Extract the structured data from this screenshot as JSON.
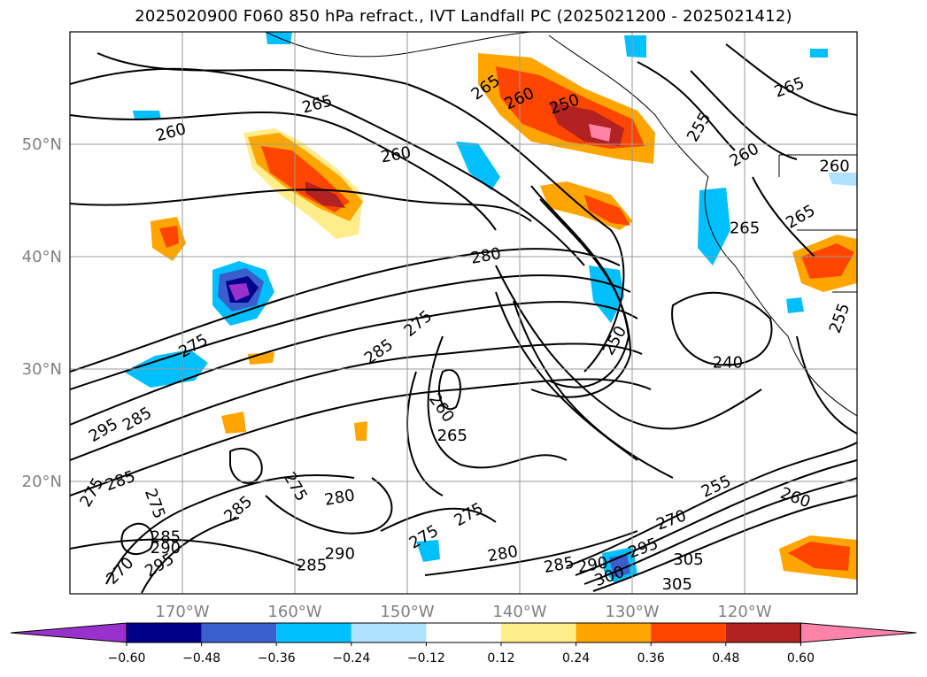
{
  "title": "2025020900 F060 850 hPa refract., IVT Landfall PC (2025021200 - 2025021412)",
  "map": {
    "lat_labels": [
      "50°N",
      "40°N",
      "30°N",
      "20°N"
    ],
    "lon_labels": [
      "170°W",
      "160°W",
      "150°W",
      "140°W",
      "130°W",
      "120°W"
    ],
    "tick_label_color": "#808080",
    "grid": true,
    "extent": {
      "lon_min": -180,
      "lon_max": -110,
      "lat_min": 10,
      "lat_max": 60
    }
  },
  "contour_labels": [
    {
      "text": "265",
      "lon": -158,
      "lat": 53.5,
      "rot": 15
    },
    {
      "text": "260",
      "lon": -171,
      "lat": 51,
      "rot": 15
    },
    {
      "text": "260",
      "lon": -151,
      "lat": 49,
      "rot": 10
    },
    {
      "text": "265",
      "lon": -143,
      "lat": 55,
      "rot": 35
    },
    {
      "text": "260",
      "lon": -140,
      "lat": 54,
      "rot": 25
    },
    {
      "text": "250",
      "lon": -136,
      "lat": 53.5,
      "rot": 20
    },
    {
      "text": "255",
      "lon": -124,
      "lat": 51.5,
      "rot": 60
    },
    {
      "text": "260",
      "lon": -120,
      "lat": 49,
      "rot": 30
    },
    {
      "text": "265",
      "lon": -116,
      "lat": 55,
      "rot": 20
    },
    {
      "text": "260",
      "lon": -112,
      "lat": 48,
      "rot": 0
    },
    {
      "text": "265",
      "lon": -115,
      "lat": 43.5,
      "rot": 30
    },
    {
      "text": "265",
      "lon": -120,
      "lat": 42.5,
      "rot": 0
    },
    {
      "text": "280",
      "lon": -143,
      "lat": 40,
      "rot": 10
    },
    {
      "text": "275",
      "lon": -149,
      "lat": 34,
      "rot": 40
    },
    {
      "text": "285",
      "lon": -152.5,
      "lat": 31.5,
      "rot": 35
    },
    {
      "text": "275",
      "lon": -169,
      "lat": 32,
      "rot": 30
    },
    {
      "text": "250",
      "lon": -131.5,
      "lat": 32.5,
      "rot": 60
    },
    {
      "text": "240",
      "lon": -121.5,
      "lat": 30.5,
      "rot": 0
    },
    {
      "text": "255",
      "lon": -111.5,
      "lat": 34.5,
      "rot": 70
    },
    {
      "text": "260",
      "lon": -147,
      "lat": 26.5,
      "rot": -55
    },
    {
      "text": "265",
      "lon": -146,
      "lat": 24,
      "rot": 0
    },
    {
      "text": "285",
      "lon": -174,
      "lat": 25.5,
      "rot": 30
    },
    {
      "text": "295",
      "lon": -177,
      "lat": 24.5,
      "rot": 30
    },
    {
      "text": "285",
      "lon": -175.5,
      "lat": 20,
      "rot": 20
    },
    {
      "text": "275",
      "lon": -178,
      "lat": 19,
      "rot": 60
    },
    {
      "text": "275",
      "lon": -172.5,
      "lat": 18,
      "rot": -70
    },
    {
      "text": "275",
      "lon": -160,
      "lat": 19.5,
      "rot": -60
    },
    {
      "text": "285",
      "lon": -165,
      "lat": 17.5,
      "rot": 40
    },
    {
      "text": "280",
      "lon": -156,
      "lat": 18.5,
      "rot": 10
    },
    {
      "text": "285",
      "lon": -171.5,
      "lat": 15,
      "rot": 0
    },
    {
      "text": "290",
      "lon": -171.5,
      "lat": 14,
      "rot": 0
    },
    {
      "text": "295",
      "lon": -172,
      "lat": 12.5,
      "rot": 30
    },
    {
      "text": "270",
      "lon": -175.5,
      "lat": 12,
      "rot": 45
    },
    {
      "text": "285",
      "lon": -158.5,
      "lat": 12.5,
      "rot": 0
    },
    {
      "text": "290",
      "lon": -156,
      "lat": 13.5,
      "rot": 0
    },
    {
      "text": "275",
      "lon": -144.5,
      "lat": 17,
      "rot": 30
    },
    {
      "text": "275",
      "lon": -148.5,
      "lat": 15,
      "rot": 30
    },
    {
      "text": "280",
      "lon": -141.5,
      "lat": 13.5,
      "rot": 10
    },
    {
      "text": "285",
      "lon": -136.5,
      "lat": 12.5,
      "rot": 10
    },
    {
      "text": "290",
      "lon": -133.5,
      "lat": 12.5,
      "rot": 10
    },
    {
      "text": "300",
      "lon": -132,
      "lat": 11.5,
      "rot": 20
    },
    {
      "text": "295",
      "lon": -129,
      "lat": 14,
      "rot": 20
    },
    {
      "text": "270",
      "lon": -126.5,
      "lat": 16.5,
      "rot": 20
    },
    {
      "text": "255",
      "lon": -122.5,
      "lat": 19.5,
      "rot": 25
    },
    {
      "text": "260",
      "lon": -115.5,
      "lat": 18.5,
      "rot": -20
    },
    {
      "text": "305",
      "lon": -125,
      "lat": 13,
      "rot": 0
    },
    {
      "text": "305",
      "lon": -126,
      "lat": 10.8,
      "rot": 0
    }
  ],
  "colorbar": {
    "ticks": [
      "−0.60",
      "−0.48",
      "−0.36",
      "−0.24",
      "−0.12",
      "0.12",
      "0.24",
      "0.36",
      "0.48",
      "0.60"
    ],
    "colors": [
      "#9932cc",
      "#00008b",
      "#3a5fcd",
      "#00bfff",
      "#b0e2ff",
      "#ffffff",
      "#ffec8b",
      "#ffa500",
      "#ff4500",
      "#b22222",
      "#ff82ab"
    ]
  }
}
